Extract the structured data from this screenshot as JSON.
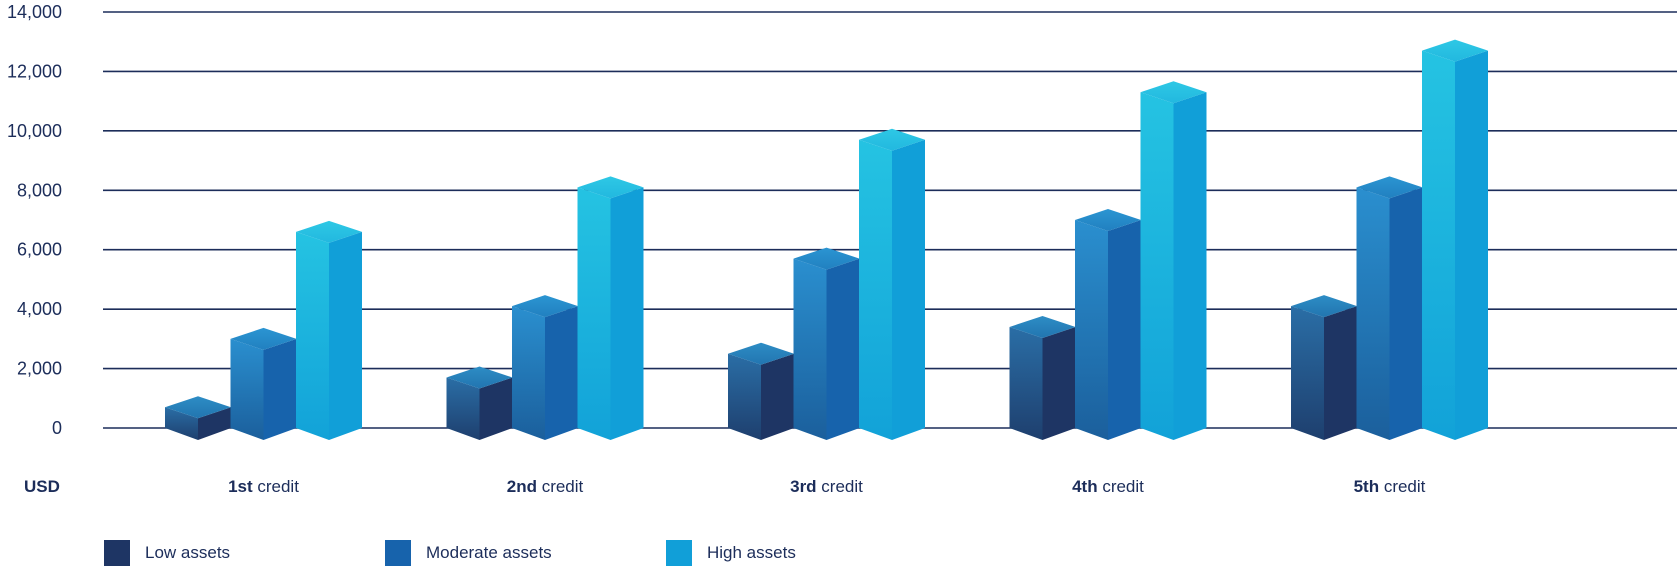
{
  "chart_data": {
    "type": "bar",
    "unit_label": "USD",
    "categories": [
      {
        "bold": "1st",
        "rest": " credit"
      },
      {
        "bold": "2nd",
        "rest": " credit"
      },
      {
        "bold": "3rd",
        "rest": " credit"
      },
      {
        "bold": "4th",
        "rest": " credit"
      },
      {
        "bold": "5th",
        "rest": " credit"
      }
    ],
    "series": [
      {
        "name": "Low assets",
        "color": "#1e3564",
        "values": [
          700,
          1700,
          2500,
          3400,
          4100
        ]
      },
      {
        "name": "Moderate assets",
        "color": "#1763ac",
        "values": [
          3000,
          4100,
          5700,
          7000,
          8100
        ]
      },
      {
        "name": "High assets",
        "color": "#119fd8",
        "values": [
          6600,
          8100,
          9700,
          11300,
          12700
        ]
      }
    ],
    "y_ticks": [
      "14,000",
      "12,000",
      "10,000",
      "8,000",
      "6,000",
      "4,000",
      "2,000",
      "0"
    ],
    "ylim": [
      0,
      14000
    ],
    "grid": true,
    "legend_position": "bottom-left"
  }
}
